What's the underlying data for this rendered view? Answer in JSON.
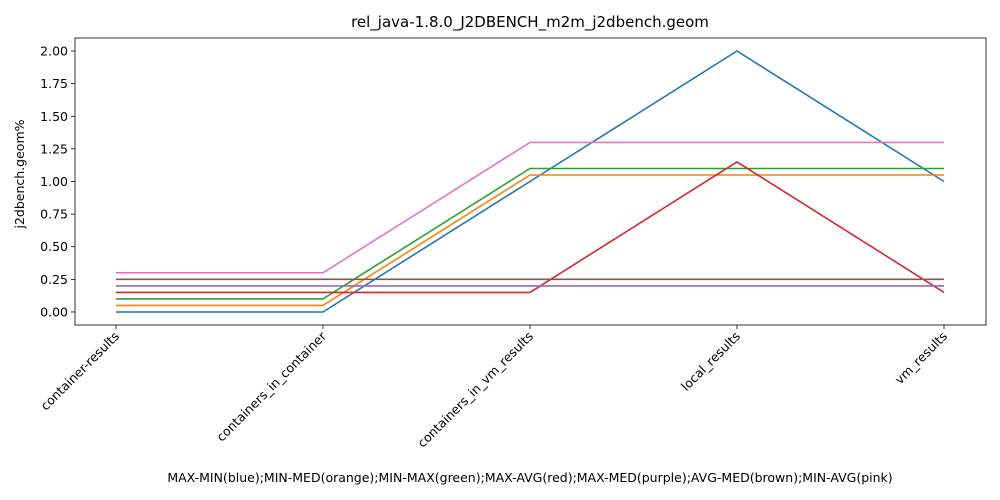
{
  "chart_data": {
    "type": "line",
    "title": "rel_java-1.8.0_J2DBENCH_m2m_j2dbench.geom",
    "xlabel": "MAX-MIN(blue);MIN-MED(orange);MIN-MAX(green);MAX-AVG(red);MAX-MED(purple);AVG-MED(brown);MIN-AVG(pink)",
    "ylabel": "j2dbench.geom%",
    "categories": [
      "container-results",
      "containers_in_container",
      "containers_in_vm_results",
      "local_results",
      "vm_results"
    ],
    "ylim": [
      -0.1,
      2.1
    ],
    "yticks": [
      "0.00",
      "0.25",
      "0.50",
      "0.75",
      "1.00",
      "1.25",
      "1.50",
      "1.75",
      "2.00"
    ],
    "grid": false,
    "series": [
      {
        "color": "#1f77b4",
        "values": [
          0.0,
          0.0,
          1.0,
          2.0,
          1.0
        ]
      },
      {
        "color": "#ff7f0e",
        "values": [
          0.05,
          0.05,
          1.05,
          1.05,
          1.05
        ]
      },
      {
        "color": "#2ca02c",
        "values": [
          0.1,
          0.1,
          1.1,
          1.1,
          1.1
        ]
      },
      {
        "color": "#d62728",
        "values": [
          0.15,
          0.15,
          0.15,
          1.15,
          0.15
        ]
      },
      {
        "color": "#9467bd",
        "values": [
          0.2,
          0.2,
          0.2,
          0.2,
          0.2
        ]
      },
      {
        "color": "#8c564b",
        "values": [
          0.25,
          0.25,
          0.25,
          0.25,
          0.25
        ]
      },
      {
        "color": "#e377c2",
        "values": [
          0.3,
          0.3,
          1.3,
          1.3,
          1.3
        ]
      }
    ]
  }
}
